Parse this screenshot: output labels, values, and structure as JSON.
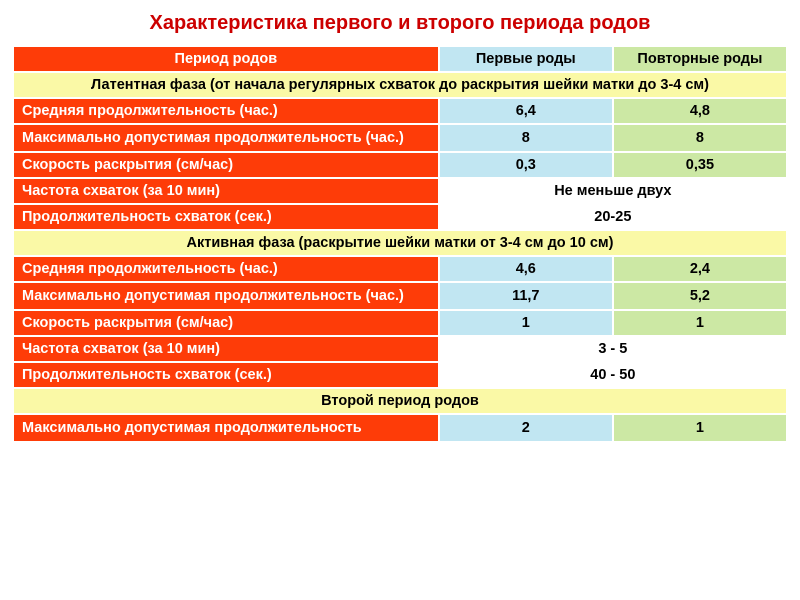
{
  "title": "Характеристика первого и второго периода родов",
  "header": {
    "label": "Период родов",
    "first": "Первые роды",
    "repeat": "Повторные роды"
  },
  "phase1": {
    "title": "Латентная фаза (от начала регулярных схваток до раскрытия шейки матки до 3-4 см)",
    "avgDuration": {
      "label": "Средняя продолжительность (час.)",
      "first": "6,4",
      "repeat": "4,8"
    },
    "maxDuration": {
      "label": "Максимально допустимая продолжительность (час.)",
      "first": "8",
      "repeat": "8"
    },
    "speed": {
      "label": "Скорость раскрытия (см/час)",
      "first": "0,3",
      "repeat": "0,35"
    },
    "freq": {
      "label": "Частота схваток (за 10 мин)",
      "merged": "Не меньше двух"
    },
    "contractionDur": {
      "label": "Продолжительность схваток (сек.)",
      "merged": "20-25"
    }
  },
  "phase2": {
    "title": "Активная фаза (раскрытие шейки матки от 3-4 см до 10 см)",
    "avgDuration": {
      "label": "Средняя продолжительность (час.)",
      "first": "4,6",
      "repeat": "2,4"
    },
    "maxDuration": {
      "label": "Максимально допустимая продолжительность (час.)",
      "first": "11,7",
      "repeat": "5,2"
    },
    "speed": {
      "label": "Скорость раскрытия (см/час)",
      "first": "1",
      "repeat": "1"
    },
    "freq": {
      "label": "Частота схваток (за 10 мин)",
      "merged": "3 - 5"
    },
    "contractionDur": {
      "label": "Продолжительность схваток (сек.)",
      "merged": "40 - 50"
    }
  },
  "period2": {
    "title": "Второй период родов",
    "maxDuration": {
      "label": "Максимально допустимая продолжительность",
      "first": "2",
      "repeat": "1"
    }
  },
  "style": {
    "titleColor": "#cc0000",
    "labelBg": "#fe3c08",
    "labelFg": "#ffffff",
    "firstBg": "#c1e6f2",
    "repeatBg": "#cce8a4",
    "phaseBg": "#faf9a6",
    "mergedBg": "#ffffff",
    "borderColor": "#ffffff",
    "fontSize": 14.5,
    "titleFontSize": 20
  }
}
